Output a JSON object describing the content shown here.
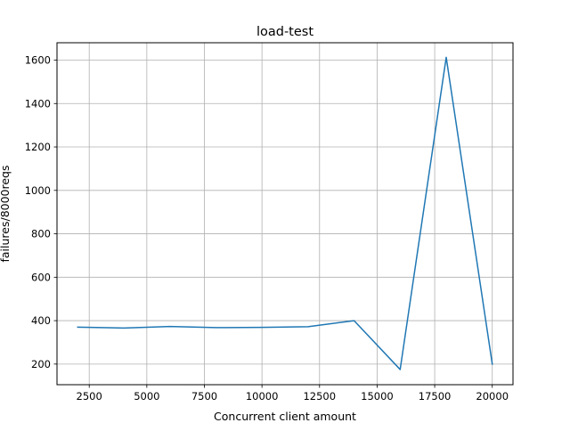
{
  "chart_data": {
    "type": "line",
    "title": "load-test",
    "xlabel": "Concurrent client amount",
    "ylabel": "failures/8000reqs",
    "xlim": [
      1100,
      20900
    ],
    "ylim": [
      105,
      1680
    ],
    "xticks": [
      2500,
      5000,
      7500,
      10000,
      12500,
      15000,
      17500,
      20000
    ],
    "yticks": [
      200,
      400,
      600,
      800,
      1000,
      1200,
      1400,
      1600
    ],
    "grid": true,
    "legend": "none",
    "series": [
      {
        "color": "#1f77b4",
        "x": [
          2000,
          4000,
          6000,
          8000,
          10000,
          12000,
          14000,
          16000,
          18000,
          20000
        ],
        "y": [
          370,
          366,
          373,
          368,
          369,
          372,
          400,
          175,
          1613,
          200
        ]
      }
    ]
  }
}
